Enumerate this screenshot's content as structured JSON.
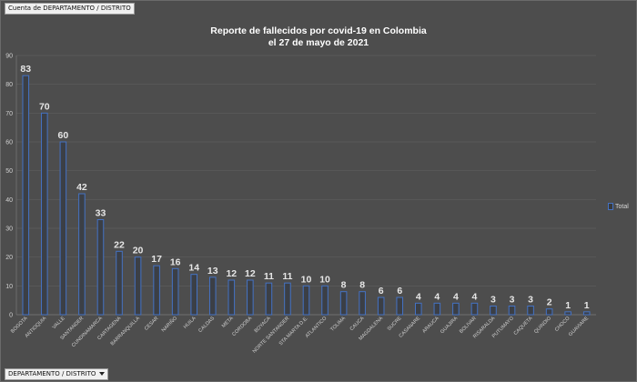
{
  "header": {
    "field_label": "Cuenta de DEPARTAMENTO / DISTRITO"
  },
  "footer": {
    "filter_label": "DEPARTAMENTO / DISTRITO"
  },
  "chart_data": {
    "type": "bar",
    "title_line1": "Reporte de fallecidos por covid-19 en Colombia",
    "title_line2": "el 27 de mayo de 2021",
    "xlabel": "",
    "ylabel": "",
    "ylim": [
      0,
      90
    ],
    "yticks": [
      0,
      10,
      20,
      30,
      40,
      50,
      60,
      70,
      80,
      90
    ],
    "grid": true,
    "legend_position": "right",
    "series": [
      {
        "name": "Total",
        "color": "#4472c4"
      }
    ],
    "categories": [
      "BOGOTA",
      "ANTIOQUIA",
      "VALLE",
      "SANTANDER",
      "CUNDINAMARCA",
      "CARTAGENA",
      "BARRANQUILLA",
      "CESAR",
      "NARIÑO",
      "HUILA",
      "CALDAS",
      "META",
      "CORDOBA",
      "BOYACA",
      "NORTE SANTANDER",
      "STA MARTA D.E.",
      "ATLANTICO",
      "TOLIMA",
      "CAUCA",
      "MAGDALENA",
      "SUCRE",
      "CASANARE",
      "ARAUCA",
      "GUAJIRA",
      "BOLIVAR",
      "RISARALDA",
      "PUTUMAYO",
      "CAQUETA",
      "QUINDIO",
      "CHOCO",
      "GUAVIARE"
    ],
    "values": [
      83,
      70,
      60,
      42,
      33,
      22,
      20,
      17,
      16,
      14,
      13,
      12,
      12,
      11,
      11,
      10,
      10,
      8,
      8,
      6,
      6,
      4,
      4,
      4,
      4,
      3,
      3,
      3,
      2,
      1,
      1
    ]
  }
}
